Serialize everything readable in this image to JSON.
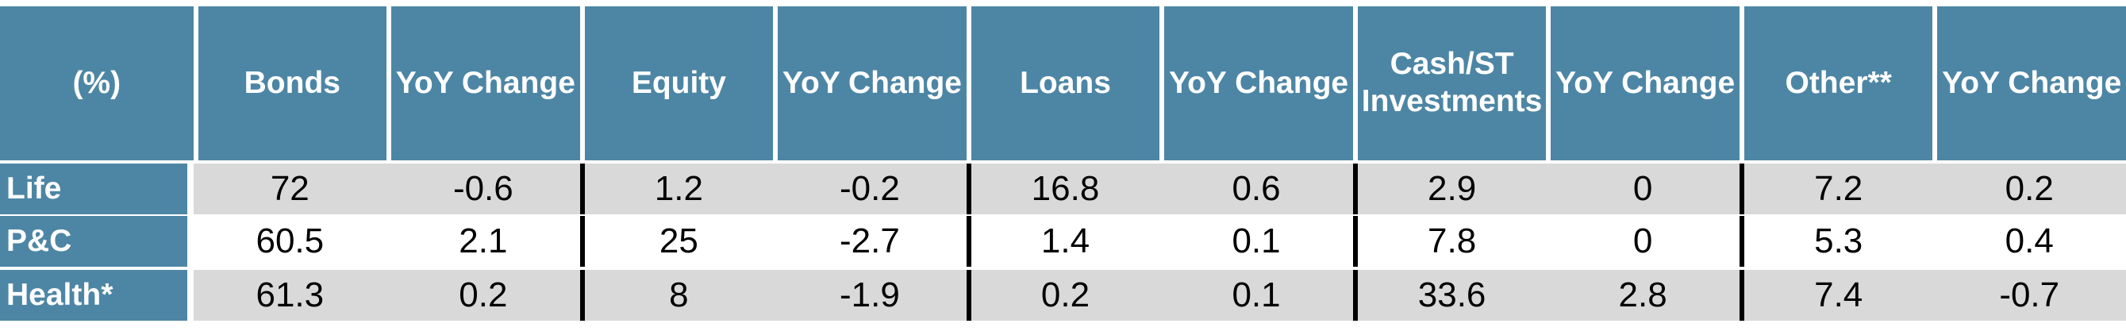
{
  "table": {
    "header": [
      "(%)",
      "Bonds",
      "YoY Change",
      "Equity",
      "YoY Change",
      "Loans",
      "YoY Change",
      "Cash/ST Investments",
      "YoY Change",
      "Other**",
      "YoY Change"
    ],
    "rows": [
      {
        "label": "Life",
        "cells": [
          72,
          -0.6,
          1.2,
          -0.2,
          16.8,
          0.6,
          2.9,
          0,
          7.2,
          0.2
        ]
      },
      {
        "label": "P&C",
        "cells": [
          60.5,
          2.1,
          25,
          -2.7,
          1.4,
          0.1,
          7.8,
          0,
          5.3,
          0.4
        ]
      },
      {
        "label": "Health*",
        "cells": [
          61.3,
          0.2,
          8,
          -1.9,
          0.2,
          0.1,
          33.6,
          2.8,
          7.4,
          -0.7
        ]
      }
    ]
  }
}
